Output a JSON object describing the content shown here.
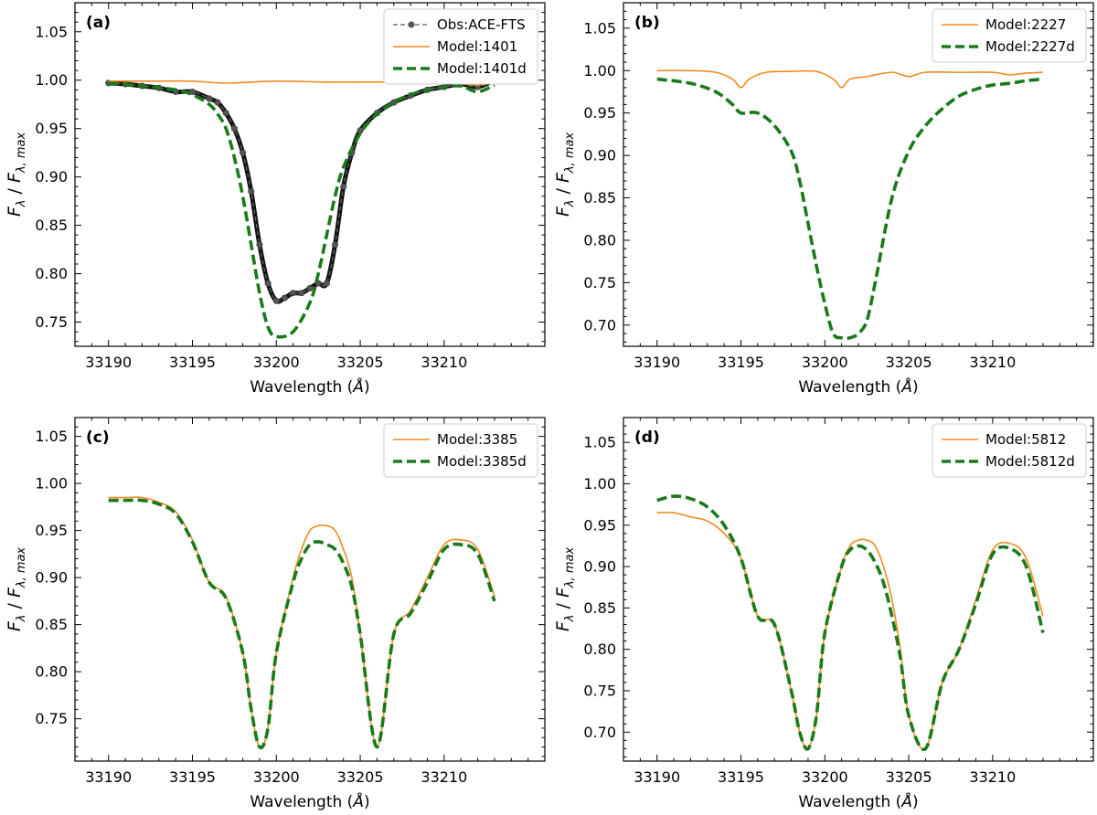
{
  "chart_data": [
    {
      "type": "line",
      "panel_label": "(a)",
      "xlabel": "Wavelength (Å)",
      "ylabel": "Fλ / Fλ,max",
      "xlim": [
        33188,
        33216
      ],
      "ylim": [
        0.725,
        1.08
      ],
      "xticks": [
        33190,
        33195,
        33200,
        33205,
        33210
      ],
      "yticks": [
        0.75,
        0.8,
        0.85,
        0.9,
        0.95,
        1.0,
        1.05
      ],
      "grid": false,
      "legend_position": "top-right",
      "series": [
        {
          "name": "Obs:ACE-FTS",
          "color": "#555555",
          "style": "dots",
          "x": [
            33190,
            33191,
            33192,
            33193,
            33194,
            33195,
            33196,
            33196.5,
            33197,
            33197.5,
            33198,
            33198.5,
            33199,
            33199.5,
            33200,
            33200.5,
            33201,
            33201.5,
            33202,
            33202.5,
            33203,
            33203.5,
            33204,
            33204.5,
            33205,
            33206,
            33207,
            33208,
            33209,
            33210,
            33211,
            33212,
            33213
          ],
          "y": [
            0.997,
            0.996,
            0.994,
            0.992,
            0.988,
            0.988,
            0.981,
            0.977,
            0.966,
            0.95,
            0.925,
            0.885,
            0.83,
            0.79,
            0.772,
            0.775,
            0.78,
            0.78,
            0.785,
            0.79,
            0.79,
            0.83,
            0.89,
            0.925,
            0.948,
            0.966,
            0.977,
            0.984,
            0.99,
            0.993,
            0.996,
            0.993,
            1.0
          ]
        },
        {
          "name": "Model:1401",
          "color": "#f28a1f",
          "style": "solid",
          "x": [
            33190,
            33193,
            33195,
            33197,
            33200,
            33203,
            33205,
            33207,
            33210,
            33212,
            33213
          ],
          "y": [
            0.999,
            0.999,
            0.999,
            0.997,
            0.999,
            0.998,
            0.998,
            0.998,
            0.998,
            0.995,
            0.999
          ]
        },
        {
          "name": "Model:1401d",
          "color": "#1a7a1a",
          "style": "dashed",
          "x": [
            33190,
            33192,
            33194,
            33195,
            33196,
            33196.5,
            33197,
            33197.5,
            33198,
            33198.5,
            33199,
            33199.5,
            33200,
            33201,
            33202,
            33202.5,
            33203,
            33203.5,
            33204,
            33205,
            33206,
            33207,
            33208,
            33209,
            33210,
            33211,
            33212,
            33213
          ],
          "y": [
            0.997,
            0.994,
            0.99,
            0.985,
            0.975,
            0.965,
            0.95,
            0.92,
            0.88,
            0.83,
            0.78,
            0.745,
            0.735,
            0.74,
            0.77,
            0.8,
            0.84,
            0.88,
            0.91,
            0.945,
            0.965,
            0.977,
            0.985,
            0.99,
            0.993,
            0.994,
            0.988,
            0.995
          ]
        }
      ]
    },
    {
      "type": "line",
      "panel_label": "(b)",
      "xlabel": "Wavelength (Å)",
      "ylabel": "Fλ / Fλ,max",
      "xlim": [
        33188,
        33216
      ],
      "ylim": [
        0.675,
        1.08
      ],
      "xticks": [
        33190,
        33195,
        33200,
        33205,
        33210
      ],
      "yticks": [
        0.7,
        0.75,
        0.8,
        0.85,
        0.9,
        0.95,
        1.0,
        1.05
      ],
      "grid": false,
      "legend_position": "top-right",
      "series": [
        {
          "name": "Model:2227",
          "color": "#f28a1f",
          "style": "solid",
          "x": [
            33190,
            33192,
            33193.5,
            33194.5,
            33195,
            33195.5,
            33196.5,
            33198,
            33199.5,
            33200.5,
            33201,
            33201.5,
            33202.5,
            33204,
            33205,
            33206,
            33208,
            33210,
            33211,
            33212,
            33213
          ],
          "y": [
            1.0,
            1.0,
            0.998,
            0.99,
            0.98,
            0.99,
            0.998,
            0.999,
            0.999,
            0.99,
            0.98,
            0.99,
            0.993,
            0.998,
            0.993,
            0.998,
            0.998,
            0.998,
            0.995,
            0.997,
            0.998
          ]
        },
        {
          "name": "Model:2227d",
          "color": "#1a7a1a",
          "style": "dashed",
          "x": [
            33190,
            33192,
            33193.5,
            33194.5,
            33195,
            33196,
            33197,
            33198,
            33198.5,
            33199,
            33199.5,
            33200,
            33200.5,
            33201,
            33201.5,
            33202,
            33202.5,
            33203,
            33204,
            33205,
            33206,
            33207,
            33208,
            33209,
            33210,
            33211,
            33212,
            33213
          ],
          "y": [
            0.99,
            0.985,
            0.975,
            0.96,
            0.95,
            0.95,
            0.935,
            0.905,
            0.87,
            0.82,
            0.77,
            0.725,
            0.69,
            0.685,
            0.685,
            0.69,
            0.705,
            0.75,
            0.85,
            0.905,
            0.935,
            0.955,
            0.97,
            0.978,
            0.983,
            0.985,
            0.988,
            0.99
          ]
        }
      ]
    },
    {
      "type": "line",
      "panel_label": "(c)",
      "xlabel": "Wavelength (Å)",
      "ylabel": "Fλ / Fλ,max",
      "xlim": [
        33188,
        33216
      ],
      "ylim": [
        0.705,
        1.07
      ],
      "xticks": [
        33190,
        33195,
        33200,
        33205,
        33210
      ],
      "yticks": [
        0.75,
        0.8,
        0.85,
        0.9,
        0.95,
        1.0,
        1.05
      ],
      "grid": false,
      "legend_position": "top-right",
      "series": [
        {
          "name": "Model:3385",
          "color": "#f28a1f",
          "style": "solid",
          "x": [
            33190,
            33191,
            33192,
            33193,
            33194,
            33195,
            33196,
            33197,
            33198,
            33198.5,
            33199,
            33199.5,
            33200,
            33201,
            33201.5,
            33202,
            33202.5,
            33203,
            33203.5,
            33204,
            33204.5,
            33205,
            33206,
            33207,
            33208,
            33209,
            33210,
            33211,
            33212,
            33213
          ],
          "y": [
            0.985,
            0.985,
            0.985,
            0.98,
            0.97,
            0.94,
            0.895,
            0.88,
            0.82,
            0.76,
            0.72,
            0.74,
            0.82,
            0.9,
            0.93,
            0.95,
            0.955,
            0.955,
            0.95,
            0.93,
            0.9,
            0.84,
            0.72,
            0.84,
            0.865,
            0.9,
            0.935,
            0.94,
            0.93,
            0.88
          ]
        },
        {
          "name": "Model:3385d",
          "color": "#1a7a1a",
          "style": "dashed",
          "x": [
            33190,
            33191,
            33192,
            33193,
            33194,
            33195,
            33196,
            33197,
            33198,
            33198.5,
            33199,
            33199.5,
            33200,
            33201,
            33201.5,
            33202,
            33202.5,
            33203,
            33203.5,
            33204,
            33204.5,
            33205,
            33206,
            33207,
            33208,
            33209,
            33210,
            33211,
            33212,
            33213
          ],
          "y": [
            0.982,
            0.982,
            0.982,
            0.978,
            0.968,
            0.938,
            0.895,
            0.878,
            0.82,
            0.76,
            0.72,
            0.74,
            0.82,
            0.895,
            0.92,
            0.935,
            0.938,
            0.935,
            0.93,
            0.915,
            0.89,
            0.84,
            0.72,
            0.84,
            0.862,
            0.895,
            0.93,
            0.935,
            0.925,
            0.875
          ]
        }
      ]
    },
    {
      "type": "line",
      "panel_label": "(d)",
      "xlabel": "Wavelength (Å)",
      "ylabel": "Fλ / Fλ,max",
      "xlim": [
        33188,
        33216
      ],
      "ylim": [
        0.665,
        1.08
      ],
      "xticks": [
        33190,
        33195,
        33200,
        33205,
        33210
      ],
      "yticks": [
        0.7,
        0.75,
        0.8,
        0.85,
        0.9,
        0.95,
        1.0,
        1.05
      ],
      "grid": false,
      "legend_position": "top-right",
      "series": [
        {
          "name": "Model:5812",
          "color": "#f28a1f",
          "style": "solid",
          "x": [
            33190,
            33191,
            33192,
            33193,
            33194,
            33195,
            33196,
            33197,
            33198,
            33198.5,
            33199,
            33199.5,
            33200,
            33201,
            33201.5,
            33202,
            33202.5,
            33203,
            33203.5,
            33204,
            33204.5,
            33205,
            33206,
            33207,
            33208,
            33209,
            33210,
            33211,
            33212,
            33213
          ],
          "y": [
            0.965,
            0.965,
            0.96,
            0.955,
            0.94,
            0.91,
            0.84,
            0.83,
            0.75,
            0.7,
            0.68,
            0.72,
            0.82,
            0.9,
            0.925,
            0.932,
            0.932,
            0.925,
            0.9,
            0.86,
            0.8,
            0.72,
            0.68,
            0.76,
            0.8,
            0.86,
            0.92,
            0.928,
            0.91,
            0.84
          ]
        },
        {
          "name": "Model:5812d",
          "color": "#1a7a1a",
          "style": "dashed",
          "x": [
            33190,
            33191,
            33192,
            33193,
            33194,
            33195,
            33196,
            33197,
            33198,
            33198.5,
            33199,
            33199.5,
            33200,
            33201,
            33201.5,
            33202,
            33202.5,
            33203,
            33203.5,
            33204,
            33204.5,
            33205,
            33206,
            33207,
            33208,
            33209,
            33210,
            33211,
            33212,
            33213
          ],
          "y": [
            0.98,
            0.985,
            0.982,
            0.972,
            0.95,
            0.91,
            0.84,
            0.83,
            0.75,
            0.7,
            0.68,
            0.72,
            0.82,
            0.9,
            0.92,
            0.925,
            0.92,
            0.905,
            0.88,
            0.84,
            0.79,
            0.72,
            0.68,
            0.76,
            0.8,
            0.855,
            0.915,
            0.922,
            0.9,
            0.82
          ]
        }
      ]
    }
  ]
}
